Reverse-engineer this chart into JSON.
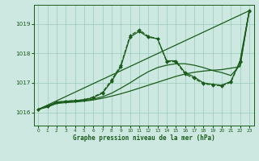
{
  "title": "Graphe pression niveau de la mer (hPa)",
  "bg_color": "#cce8e0",
  "line_color": "#1a5c1a",
  "grid_color": "#99ccbb",
  "xlim": [
    -0.5,
    23.5
  ],
  "ylim": [
    1015.55,
    1019.65
  ],
  "yticks": [
    1016,
    1017,
    1018,
    1019
  ],
  "xticks": [
    0,
    1,
    2,
    3,
    4,
    5,
    6,
    7,
    8,
    9,
    10,
    11,
    12,
    13,
    14,
    15,
    16,
    17,
    18,
    19,
    20,
    21,
    22,
    23
  ],
  "series": [
    {
      "x": [
        0,
        23
      ],
      "y": [
        1016.1,
        1019.45
      ],
      "style": "solid",
      "marker": null,
      "markersize": 0,
      "linewidth": 0.9
    },
    {
      "x": [
        0,
        1,
        2,
        3,
        4,
        5,
        6,
        7,
        8,
        9,
        10,
        11,
        12,
        13,
        14,
        15,
        16,
        17,
        18,
        19,
        20,
        21,
        22,
        23
      ],
      "y": [
        1016.1,
        1016.2,
        1016.35,
        1016.38,
        1016.4,
        1016.42,
        1016.5,
        1016.65,
        1017.05,
        1017.55,
        1018.55,
        1018.75,
        1018.55,
        1018.5,
        1017.75,
        1017.75,
        1017.35,
        1017.2,
        1017.0,
        1016.95,
        1016.92,
        1017.05,
        1017.75,
        1019.45
      ],
      "style": "solid",
      "marker": "D",
      "markersize": 2.0,
      "linewidth": 0.9
    },
    {
      "x": [
        0,
        1,
        2,
        3,
        4,
        5,
        6,
        7,
        8,
        9,
        10,
        11,
        12,
        13,
        14,
        15,
        16,
        17,
        18,
        19,
        20,
        21,
        22,
        23
      ],
      "y": [
        1016.1,
        1016.18,
        1016.3,
        1016.33,
        1016.35,
        1016.38,
        1016.42,
        1016.48,
        1016.55,
        1016.63,
        1016.72,
        1016.82,
        1016.92,
        1017.02,
        1017.12,
        1017.22,
        1017.3,
        1017.36,
        1017.4,
        1017.43,
        1017.45,
        1017.5,
        1017.55,
        1019.45
      ],
      "style": "solid",
      "marker": null,
      "markersize": 0,
      "linewidth": 0.9
    },
    {
      "x": [
        0,
        1,
        2,
        3,
        4,
        5,
        6,
        7,
        8,
        9,
        10,
        11,
        12,
        13,
        14,
        15,
        16,
        17,
        18,
        19,
        20,
        21,
        22,
        23
      ],
      "y": [
        1016.1,
        1016.22,
        1016.32,
        1016.35,
        1016.37,
        1016.4,
        1016.45,
        1016.53,
        1016.65,
        1016.82,
        1017.0,
        1017.2,
        1017.38,
        1017.52,
        1017.6,
        1017.65,
        1017.65,
        1017.6,
        1017.52,
        1017.42,
        1017.35,
        1017.25,
        1017.6,
        1019.45
      ],
      "style": "solid",
      "marker": null,
      "markersize": 0,
      "linewidth": 0.9
    },
    {
      "x": [
        0,
        1,
        2,
        3,
        4,
        5,
        6,
        7,
        8,
        9,
        10,
        11,
        12,
        13,
        14,
        15,
        16,
        17,
        18,
        19,
        20,
        21,
        22,
        23
      ],
      "y": [
        1016.1,
        1016.2,
        1016.34,
        1016.37,
        1016.4,
        1016.43,
        1016.52,
        1016.68,
        1017.1,
        1017.6,
        1018.6,
        1018.8,
        1018.58,
        1018.5,
        1017.72,
        1017.72,
        1017.3,
        1017.15,
        1016.97,
        1016.93,
        1016.9,
        1017.02,
        1017.72,
        1019.42
      ],
      "style": "dashed",
      "marker": "D",
      "markersize": 2.0,
      "linewidth": 0.9
    }
  ]
}
